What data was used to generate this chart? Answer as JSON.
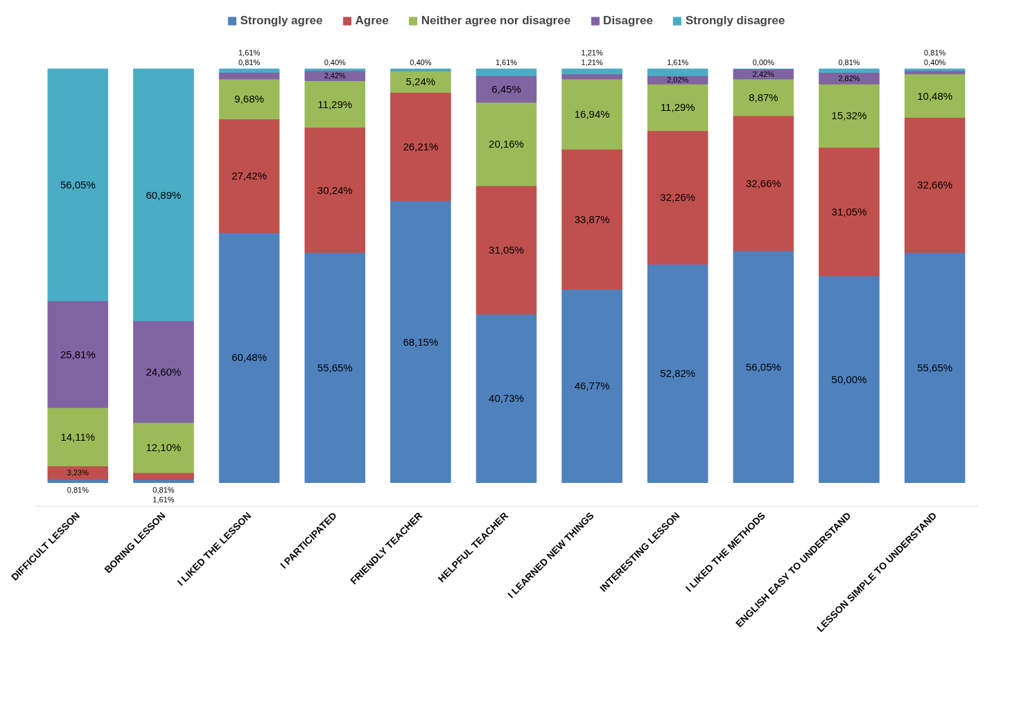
{
  "chart_data": {
    "type": "bar",
    "stacked": true,
    "legend": "top",
    "data_labels": false,
    "categories": [
      "DIFFICULT LESSON",
      "BORING LESSON",
      "I LIKED THE LESSON",
      "I PARTICIPATED",
      "FRIENDLY TEACHER",
      "HELPFUL TEACHER",
      "I LEARNED NEW THINGS",
      "INTERESTING LESSON",
      "I LIKED THE METHODS",
      "ENGLISH EASY TO UNDERSTAND",
      "LESSON SIMPLE TO UNDERSTAND"
    ],
    "series": [
      {
        "name": "Strongly agree",
        "color": "#4f81bd",
        "values": [
          0.81,
          0.81,
          60.48,
          55.65,
          68.15,
          40.73,
          46.77,
          52.82,
          56.05,
          50.0,
          55.65
        ],
        "value_labels": [
          "0,81%",
          "0,81%",
          "60,48%",
          "55,65%",
          "68,15%",
          "40,73%",
          "46,77%",
          "52,82%",
          "56,05%",
          "50,00%",
          "55,65%"
        ]
      },
      {
        "name": "Agree",
        "color": "#c0504d",
        "values": [
          3.23,
          1.61,
          27.42,
          30.24,
          26.21,
          31.05,
          33.87,
          32.26,
          32.66,
          31.05,
          32.66
        ],
        "value_labels": [
          "3,23%",
          "1,61%",
          "27,42%",
          "30,24%",
          "26,21%",
          "31,05%",
          "33,87%",
          "32,26%",
          "32,66%",
          "31,05%",
          "32,66%"
        ]
      },
      {
        "name": "Neither agree nor disagree",
        "color": "#9bbb59",
        "values": [
          14.11,
          12.1,
          9.68,
          11.29,
          5.24,
          20.16,
          16.94,
          11.29,
          8.87,
          15.32,
          10.48
        ],
        "value_labels": [
          "14,11%",
          "12,10%",
          "9,68%",
          "11,29%",
          "5,24%",
          "20,16%",
          "16,94%",
          "11,29%",
          "8,87%",
          "15,32%",
          "10,48%"
        ]
      },
      {
        "name": "Disagree",
        "color": "#8064a2",
        "values": [
          25.81,
          24.6,
          1.61,
          2.42,
          0,
          6.45,
          1.21,
          2.02,
          2.42,
          2.82,
          0.81
        ],
        "value_labels": [
          "25,81%",
          "24,60%",
          "1,61%",
          "2,42%",
          null,
          "6,45%",
          "1,21%",
          "2,02%",
          "2,42%",
          "2,82%",
          "0,81%"
        ]
      },
      {
        "name": "Strongly disagree",
        "color": "#4bacc6",
        "values": [
          56.05,
          60.89,
          0.81,
          0.4,
          0.4,
          1.61,
          1.21,
          1.61,
          0.0,
          0.81,
          0.4
        ],
        "value_labels": [
          "56,05%",
          "60,89%",
          "0,81%",
          "0,40%",
          "0,40%",
          "1,61%",
          "1,21%",
          "1,61%",
          "0,00%",
          "0,81%",
          "0,40%"
        ]
      }
    ]
  }
}
